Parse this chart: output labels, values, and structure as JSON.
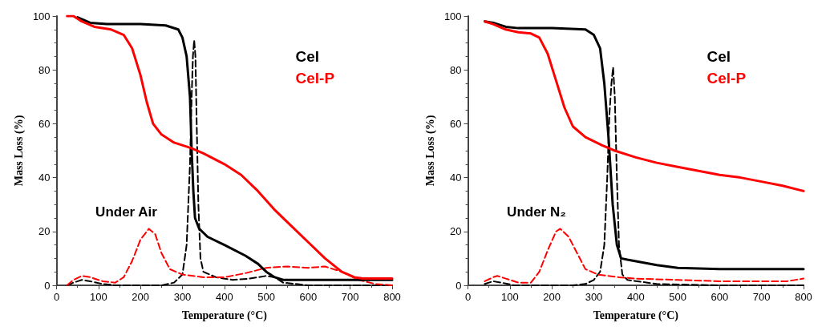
{
  "chart_data": [
    {
      "type": "line",
      "xlabel": "Temperature (°C)",
      "ylabel": "Mass Loss (%)",
      "annotations": [
        "Under Air"
      ],
      "xlim": [
        0,
        800
      ],
      "xticks": [
        0,
        100,
        200,
        300,
        400,
        500,
        600,
        700,
        800
      ],
      "ylim": [
        0,
        100
      ],
      "yticks": [
        0,
        20,
        40,
        60,
        80,
        100
      ],
      "grid": false,
      "legend": "top right",
      "marker": "none",
      "series": [
        {
          "name": "Cel",
          "color": "#000000",
          "line_style": "solid",
          "x": [
            50,
            80,
            120,
            200,
            260,
            290,
            300,
            310,
            318,
            322,
            326,
            330,
            340,
            360,
            400,
            450,
            480,
            500,
            520,
            540,
            600,
            700,
            800
          ],
          "values": [
            99.5,
            97.5,
            97,
            97,
            96.5,
            95,
            92,
            85,
            70,
            50,
            35,
            25,
            21,
            18,
            15,
            11,
            8,
            5,
            3,
            2,
            2,
            2,
            2
          ]
        },
        {
          "name": "Cel-P",
          "color": "#ff0000",
          "line_style": "solid",
          "x": [
            25,
            40,
            60,
            90,
            130,
            160,
            180,
            200,
            215,
            230,
            250,
            280,
            320,
            350,
            400,
            440,
            480,
            520,
            560,
            600,
            640,
            680,
            710,
            730,
            800
          ],
          "values": [
            100,
            100,
            98,
            96,
            95,
            93,
            88,
            78,
            68,
            60,
            56,
            53,
            51,
            49,
            45,
            41,
            35,
            28,
            22,
            16,
            10,
            5,
            3,
            2.5,
            2.5
          ]
        },
        {
          "color": "#000000",
          "line_style": "dashed",
          "x": [
            25,
            40,
            60,
            80,
            110,
            140,
            250,
            280,
            300,
            310,
            318,
            322,
            325,
            328,
            331,
            334,
            338,
            343,
            350,
            380,
            420,
            460,
            500,
            520,
            540,
            600,
            800
          ],
          "values": [
            0,
            1,
            2,
            1.5,
            0.5,
            0,
            0,
            1,
            4,
            15,
            45,
            70,
            85,
            91,
            85,
            60,
            30,
            10,
            5,
            3,
            2,
            2.5,
            3.5,
            3,
            1,
            0,
            0
          ]
        },
        {
          "color": "#ff0000",
          "line_style": "dashed",
          "x": [
            25,
            40,
            60,
            80,
            110,
            140,
            160,
            180,
            200,
            220,
            235,
            250,
            270,
            300,
            350,
            400,
            450,
            500,
            550,
            600,
            640,
            680,
            720,
            760,
            800
          ],
          "values": [
            0,
            2,
            3.5,
            3,
            1.5,
            1,
            3,
            9,
            17,
            21,
            19,
            12,
            6,
            4,
            3,
            3,
            4.5,
            6.5,
            7,
            6.5,
            7,
            5,
            2,
            0.5,
            0
          ]
        }
      ]
    },
    {
      "type": "line",
      "xlabel": "Temperature (°C)",
      "ylabel": "Mass Loss (%)",
      "annotations": [
        "Under N₂"
      ],
      "xlim": [
        0,
        800
      ],
      "xticks": [
        0,
        100,
        200,
        300,
        400,
        500,
        600,
        700,
        800
      ],
      "ylim": [
        0,
        100
      ],
      "yticks": [
        0,
        20,
        40,
        60,
        80,
        100
      ],
      "grid": false,
      "legend": "top right",
      "marker": "none",
      "series": [
        {
          "name": "Cel",
          "color": "#000000",
          "line_style": "solid",
          "x": [
            40,
            60,
            90,
            120,
            200,
            280,
            300,
            315,
            325,
            335,
            345,
            355,
            365,
            380,
            450,
            500,
            600,
            800
          ],
          "values": [
            98,
            97.5,
            96,
            95.5,
            95.5,
            95,
            93,
            88,
            75,
            55,
            30,
            15,
            10,
            9.5,
            7.5,
            6.5,
            6,
            6
          ]
        },
        {
          "name": "Cel-P",
          "color": "#ff0000",
          "line_style": "solid",
          "x": [
            40,
            60,
            90,
            120,
            150,
            170,
            190,
            210,
            230,
            250,
            280,
            320,
            350,
            400,
            450,
            500,
            550,
            600,
            650,
            700,
            750,
            800
          ],
          "values": [
            98,
            97,
            95,
            94,
            93.5,
            92,
            86,
            76,
            66,
            59,
            55,
            52,
            50,
            47.5,
            45.5,
            44,
            42.5,
            41,
            40,
            38.5,
            37,
            35
          ]
        },
        {
          "color": "#000000",
          "line_style": "dashed",
          "x": [
            40,
            60,
            80,
            110,
            250,
            280,
            300,
            315,
            325,
            332,
            337,
            342,
            346,
            350,
            355,
            360,
            368,
            380,
            450,
            600,
            800
          ],
          "values": [
            0.5,
            1.5,
            1,
            0,
            0,
            0.5,
            2,
            5,
            15,
            40,
            63,
            75,
            81,
            70,
            40,
            15,
            4,
            2,
            0.5,
            0,
            0
          ]
        },
        {
          "color": "#ff0000",
          "line_style": "dashed",
          "x": [
            40,
            60,
            70,
            90,
            120,
            150,
            170,
            190,
            210,
            220,
            240,
            260,
            280,
            310,
            360,
            400,
            500,
            600,
            700,
            760,
            800
          ],
          "values": [
            1.5,
            3,
            3.5,
            2.5,
            1,
            1,
            5,
            13,
            20,
            21,
            18,
            12,
            6,
            4,
            3,
            2.5,
            2,
            1.5,
            1.5,
            1.5,
            2.5
          ]
        }
      ]
    }
  ]
}
